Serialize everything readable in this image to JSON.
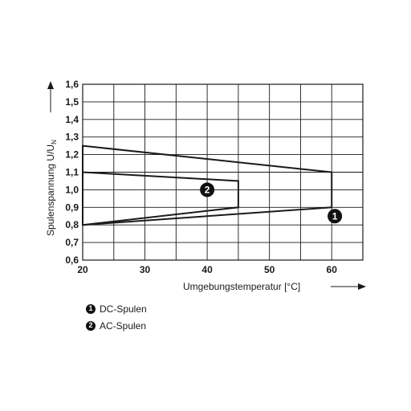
{
  "chart_data": {
    "type": "line",
    "xlabel": "Umgebungstemperatur [°C]",
    "ylabel": "Spulenspannung U/U",
    "ylabel_subscript": "N",
    "xlim": [
      20,
      65
    ],
    "ylim": [
      0.6,
      1.6
    ],
    "x_ticks": [
      20,
      30,
      40,
      50,
      60
    ],
    "x_tick_labels": [
      "20",
      "30",
      "40",
      "50",
      "60"
    ],
    "y_ticks": [
      0.6,
      0.7,
      0.8,
      0.9,
      1.0,
      1.1,
      1.2,
      1.3,
      1.4,
      1.5,
      1.6
    ],
    "y_tick_labels": [
      "0,6",
      "0,7",
      "0,8",
      "0,9",
      "1,0",
      "1,1",
      "1,2",
      "1,3",
      "1,4",
      "1,5",
      "1,6"
    ],
    "grid": true,
    "series": [
      {
        "marker": "1",
        "name": "DC-Spulen",
        "x": [
          20,
          60,
          60,
          20
        ],
        "y": [
          1.25,
          1.1,
          0.9,
          0.8
        ]
      },
      {
        "marker": "2",
        "name": "AC-Spulen",
        "x": [
          20,
          45,
          45,
          20
        ],
        "y": [
          1.1,
          1.05,
          0.9,
          0.8
        ]
      }
    ],
    "annotations": [
      {
        "text": "2",
        "x": 40,
        "y": 1.0
      },
      {
        "text": "1",
        "x": 60.5,
        "y": 0.85
      }
    ],
    "colors": {
      "line": "#1a1a1a",
      "grid": "#1a1a1a"
    }
  }
}
